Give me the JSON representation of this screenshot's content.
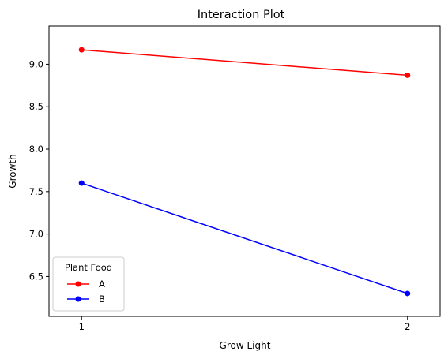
{
  "chart_data": {
    "type": "line",
    "title": "Interaction Plot",
    "xlabel": "Grow Light",
    "ylabel": "Growth",
    "x": [
      1,
      2
    ],
    "x_ticks": [
      "1",
      "2"
    ],
    "xlim": [
      0.9,
      2.1
    ],
    "ylim": [
      6.03,
      9.45
    ],
    "y_ticks": [
      6.5,
      7.0,
      7.5,
      8.0,
      8.5,
      9.0
    ],
    "grid": false,
    "legend": {
      "title": "Plant Food",
      "placement": "lower-left",
      "entries": [
        "A",
        "B"
      ]
    },
    "series": [
      {
        "name": "A",
        "color": "#ff0000",
        "values": [
          9.17,
          8.87
        ]
      },
      {
        "name": "B",
        "color": "#0000ff",
        "values": [
          7.6,
          6.3
        ]
      }
    ]
  }
}
